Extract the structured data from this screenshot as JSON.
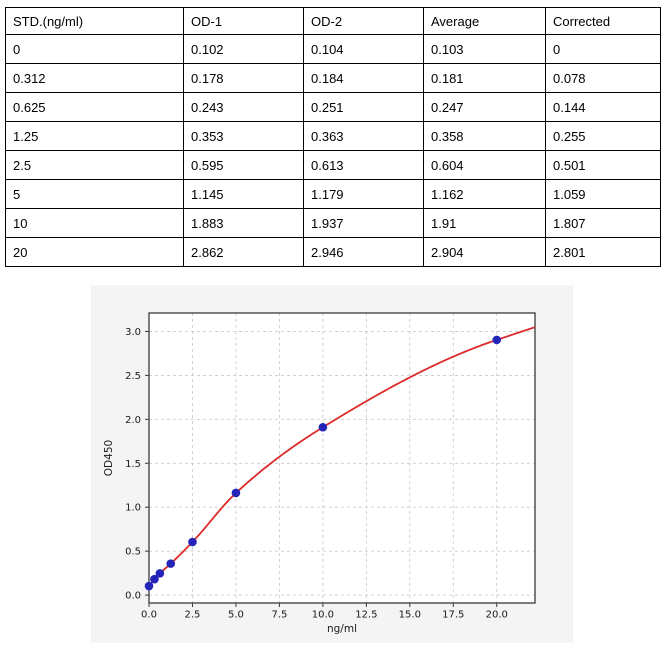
{
  "table": {
    "headers": [
      "STD.(ng/ml)",
      "OD-1",
      "OD-2",
      "Average",
      "Corrected"
    ],
    "rows": [
      [
        "0",
        "0.102",
        "0.104",
        "0.103",
        "0"
      ],
      [
        "0.312",
        "0.178",
        "0.184",
        "0.181",
        "0.078"
      ],
      [
        "0.625",
        "0.243",
        "0.251",
        "0.247",
        "0.144"
      ],
      [
        "1.25",
        "0.353",
        "0.363",
        "0.358",
        "0.255"
      ],
      [
        "2.5",
        "0.595",
        "0.613",
        "0.604",
        "0.501"
      ],
      [
        "5",
        "1.145",
        "1.179",
        "1.162",
        "1.059"
      ],
      [
        "10",
        "1.883",
        "1.937",
        "1.91",
        "1.807"
      ],
      [
        "20",
        "2.862",
        "2.946",
        "2.904",
        "2.801"
      ]
    ]
  },
  "chart_data": {
    "type": "scatter",
    "fit_curve": true,
    "x": [
      0,
      0.312,
      0.625,
      1.25,
      2.5,
      5,
      10,
      20
    ],
    "y": [
      0.103,
      0.181,
      0.247,
      0.358,
      0.604,
      1.162,
      1.91,
      2.904
    ],
    "title": "",
    "xlabel": "ng/ml",
    "ylabel": "OD450",
    "xlim": [
      0,
      22.2
    ],
    "ylim": [
      -0.09,
      3.21
    ],
    "xticks": [
      0,
      2.5,
      5,
      7.5,
      10,
      12.5,
      15,
      17.5,
      20
    ],
    "xtick_labels": [
      "0.0",
      "2.5",
      "5.0",
      "7.5",
      "10.0",
      "12.5",
      "15.0",
      "17.5",
      "20.0"
    ],
    "yticks": [
      0,
      0.5,
      1,
      1.5,
      2,
      2.5,
      3
    ],
    "ytick_labels": [
      "0.0",
      "0.5",
      "1.0",
      "1.5",
      "2.0",
      "2.5",
      "3.0"
    ],
    "grid": true,
    "grid_style": "dashed",
    "legend": "none",
    "colors": {
      "point": "#2424b8",
      "curve": "#dd2b2b",
      "figure_bg": "#f4f4f4",
      "plot_bg": "#ffffff",
      "grid": "#cccccc",
      "frame": "#3a3a3a",
      "tick_text": "#1a1a1a"
    }
  }
}
